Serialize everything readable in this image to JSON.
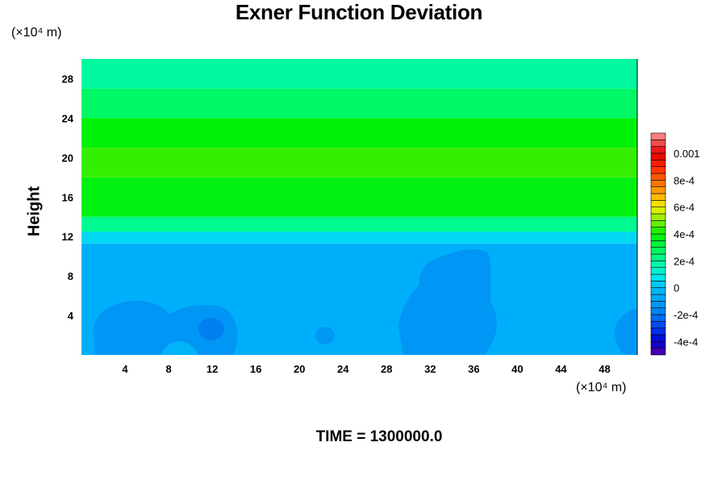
{
  "chart_data": {
    "type": "heatmap",
    "title": "Exner Function Deviation",
    "ylabel": "Height",
    "xlabel": "",
    "y_unit": "(×10⁴ m)",
    "x_unit": "(×10⁴ m)",
    "footer": "TIME = 1300000.0",
    "xlim": [
      0,
      51
    ],
    "ylim": [
      0,
      30
    ],
    "x_ticks": [
      "4",
      "8",
      "12",
      "16",
      "20",
      "24",
      "28",
      "32",
      "36",
      "40",
      "44",
      "48"
    ],
    "y_ticks": [
      "4",
      "8",
      "12",
      "16",
      "20",
      "24",
      "28"
    ],
    "layers": [
      {
        "y": [
          0,
          11.3
        ],
        "value": -5e-05
      },
      {
        "y": [
          11.3,
          12.5
        ],
        "value": 5e-05
      },
      {
        "y": [
          12.5,
          14
        ],
        "value": 0.00021
      },
      {
        "y": [
          14,
          18
        ],
        "value": 0.00038
      },
      {
        "y": [
          18,
          21
        ],
        "value": 0.00044
      },
      {
        "y": [
          21,
          24
        ],
        "value": 0.00039
      },
      {
        "y": [
          24,
          27
        ],
        "value": 0.00027
      },
      {
        "y": [
          27,
          30
        ],
        "value": 0.00019
      }
    ],
    "colorbar": {
      "min": -0.0005,
      "max": 0.00115,
      "ticks": [
        {
          "value": 0.001,
          "label": "0.001"
        },
        {
          "value": 0.0008,
          "label": "8e-4"
        },
        {
          "value": 0.0006,
          "label": "6e-4"
        },
        {
          "value": 0.0004,
          "label": "4e-4"
        },
        {
          "value": 0.0002,
          "label": "2e-4"
        },
        {
          "value": 0,
          "label": "0"
        },
        {
          "value": -0.0002,
          "label": "-2e-4"
        },
        {
          "value": -0.0004,
          "label": "-4e-4"
        }
      ]
    }
  }
}
